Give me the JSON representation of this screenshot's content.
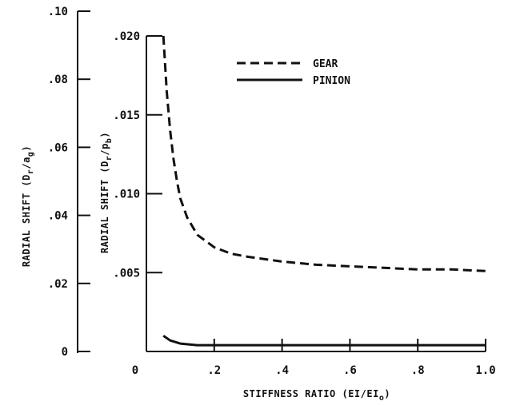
{
  "chart_data": {
    "type": "line",
    "xlabel": "STIFFNESS RATIO (EI/EI",
    "xlabel_sub": "o",
    "xlabel_close": ")",
    "xlim": [
      0,
      1.0
    ],
    "x_ticks": [
      "0",
      ".2",
      ".4",
      ".6",
      ".8",
      "1.0"
    ],
    "x_tick_values": [
      0,
      0.2,
      0.4,
      0.6,
      0.8,
      1.0
    ],
    "y_axes": [
      {
        "side": "outer-left",
        "label": "RADIAL SHIFT (D",
        "label_sub1": "r",
        "label_mid": "/a",
        "label_sub2": "g",
        "label_close": ")",
        "ylim": [
          0,
          0.1
        ],
        "ticks": [
          "0",
          ".02",
          ".04",
          ".06",
          ".08",
          ".10"
        ],
        "tick_values": [
          0,
          0.02,
          0.04,
          0.06,
          0.08,
          0.1
        ]
      },
      {
        "side": "inner-left",
        "label": "RADIAL SHIFT (D",
        "label_sub1": "r",
        "label_mid": "/p",
        "label_sub2": "b",
        "label_close": ")",
        "ylim": [
          0,
          0.02
        ],
        "ticks": [
          ".005",
          ".010",
          ".015",
          ".020"
        ],
        "tick_values": [
          0.005,
          0.01,
          0.015,
          0.02
        ]
      }
    ],
    "legend_position": "top-right",
    "series": [
      {
        "name": "GEAR",
        "style": "dashed",
        "x": [
          0.05,
          0.06,
          0.07,
          0.08,
          0.09,
          0.1,
          0.12,
          0.15,
          0.2,
          0.25,
          0.3,
          0.4,
          0.5,
          0.6,
          0.7,
          0.8,
          0.9,
          1.0
        ],
        "y": [
          0.02,
          0.0165,
          0.014,
          0.0122,
          0.0108,
          0.0097,
          0.0085,
          0.0074,
          0.0066,
          0.0062,
          0.006,
          0.0057,
          0.0055,
          0.0054,
          0.0053,
          0.0052,
          0.0052,
          0.0051
        ]
      },
      {
        "name": "PINION",
        "style": "solid",
        "x": [
          0.05,
          0.07,
          0.1,
          0.15,
          0.2,
          0.4,
          0.6,
          0.8,
          1.0
        ],
        "y": [
          0.001,
          0.0007,
          0.0005,
          0.0004,
          0.0004,
          0.0004,
          0.0004,
          0.0004,
          0.0004
        ]
      }
    ]
  }
}
